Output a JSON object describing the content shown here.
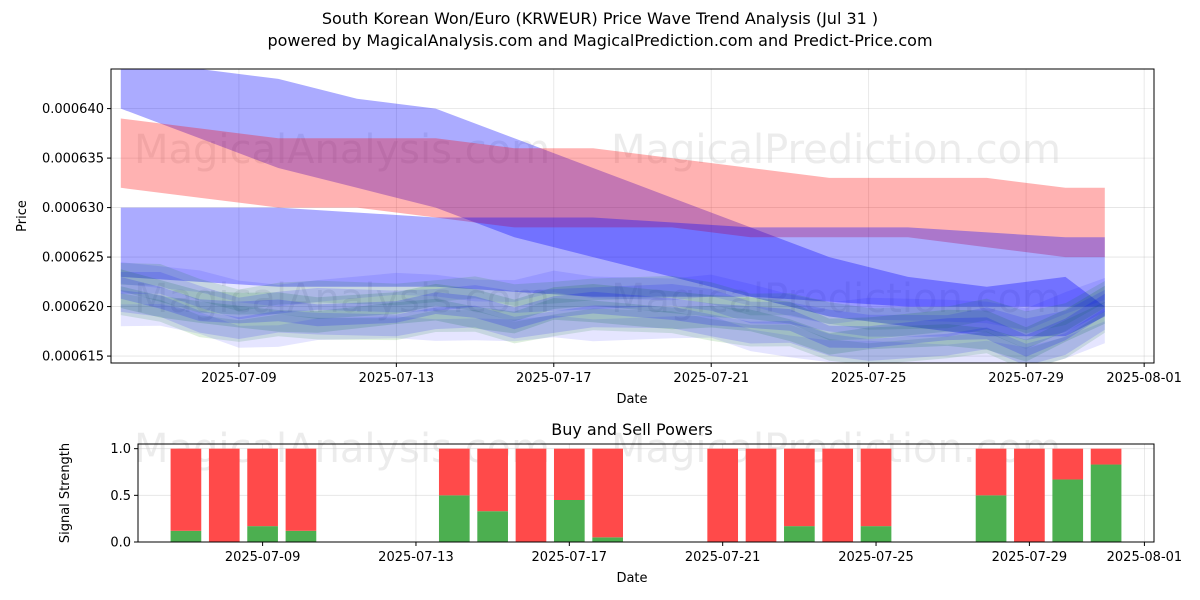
{
  "header": {
    "title": "South Korean Won/Euro (KRWEUR) Price Wave Trend Analysis (Jul 31 )",
    "subtitle": "powered by MagicalAnalysis.com and MagicalPrediction.com and Predict-Price.com"
  },
  "watermarks": [
    "MagicalAnalysis.com",
    "MagicalPrediction.com"
  ],
  "colors": {
    "blue": "#0000ff",
    "red": "#ff0000",
    "green": "#008000",
    "buy": "#4caf50",
    "sell": "#ff4a4a",
    "grid": "#b0b0b0"
  },
  "chart_data": [
    {
      "type": "area",
      "xlabel": "Date",
      "ylabel": "Price",
      "x_ticks": [
        "2025-07-09",
        "2025-07-13",
        "2025-07-17",
        "2025-07-21",
        "2025-07-25",
        "2025-07-29",
        "2025-08-01"
      ],
      "y_ticks": [
        "0.000615",
        "0.000620",
        "0.000625",
        "0.000630",
        "0.000635",
        "0.000640"
      ],
      "xlim": [
        "2025-07-05.75",
        "2025-08-01.25"
      ],
      "ylim": [
        0.0006143,
        0.000644
      ],
      "grid": true,
      "bands": [
        {
          "color": "blue",
          "opacity": 0.33,
          "x": [
            "2025-07-06",
            "2025-07-08",
            "2025-07-10",
            "2025-07-12",
            "2025-07-14",
            "2025-07-16",
            "2025-07-18",
            "2025-07-20",
            "2025-07-22",
            "2025-07-24",
            "2025-07-26",
            "2025-07-28",
            "2025-07-30",
            "2025-07-31"
          ],
          "upper": [
            0.000644,
            0.000644,
            0.000643,
            0.000641,
            0.00064,
            0.000637,
            0.000634,
            0.000631,
            0.000628,
            0.000625,
            0.000623,
            0.000622,
            0.000623,
            0.00062
          ],
          "lower": [
            0.00064,
            0.000637,
            0.000634,
            0.000632,
            0.00063,
            0.000627,
            0.000625,
            0.000623,
            0.000621,
            0.000619,
            0.000618,
            0.000617,
            0.000617,
            0.000619
          ]
        },
        {
          "color": "red",
          "opacity": 0.3,
          "x": [
            "2025-07-06",
            "2025-07-08",
            "2025-07-10",
            "2025-07-12",
            "2025-07-14",
            "2025-07-16",
            "2025-07-18",
            "2025-07-20",
            "2025-07-22",
            "2025-07-24",
            "2025-07-26",
            "2025-07-28",
            "2025-07-30",
            "2025-07-31"
          ],
          "upper": [
            0.000639,
            0.000638,
            0.000637,
            0.000637,
            0.000637,
            0.000636,
            0.000636,
            0.000635,
            0.000634,
            0.000633,
            0.000633,
            0.000633,
            0.000632,
            0.000632
          ],
          "lower": [
            0.000632,
            0.000631,
            0.00063,
            0.00063,
            0.000629,
            0.000628,
            0.000628,
            0.000628,
            0.000627,
            0.000627,
            0.000627,
            0.000626,
            0.000625,
            0.000625
          ]
        },
        {
          "color": "blue",
          "opacity": 0.33,
          "x": [
            "2025-07-06",
            "2025-07-10",
            "2025-07-14",
            "2025-07-18",
            "2025-07-22",
            "2025-07-26",
            "2025-07-30",
            "2025-07-31"
          ],
          "upper": [
            0.00063,
            0.00063,
            0.000629,
            0.000629,
            0.000628,
            0.000628,
            0.000627,
            0.000627
          ],
          "lower": [
            0.000623,
            0.000622,
            0.000622,
            0.000621,
            0.000621,
            0.00062,
            0.00062,
            0.00062
          ]
        }
      ],
      "wave_lines": {
        "x": [
          "2025-07-06",
          "2025-07-07",
          "2025-07-08",
          "2025-07-09",
          "2025-07-10",
          "2025-07-11",
          "2025-07-13",
          "2025-07-14",
          "2025-07-15",
          "2025-07-16",
          "2025-07-17",
          "2025-07-18",
          "2025-07-20",
          "2025-07-21",
          "2025-07-22",
          "2025-07-23",
          "2025-07-24",
          "2025-07-25",
          "2025-07-27",
          "2025-07-28",
          "2025-07-29",
          "2025-07-30",
          "2025-07-31"
        ],
        "center": [
          0.0006215,
          0.000621,
          0.00062,
          0.0006192,
          0.0006193,
          0.0006194,
          0.0006197,
          0.00062,
          0.0006198,
          0.0006192,
          0.00062,
          0.00062,
          0.0006198,
          0.0006196,
          0.0006188,
          0.0006183,
          0.0006172,
          0.0006172,
          0.0006174,
          0.0006176,
          0.0006164,
          0.0006178,
          0.0006198
        ]
      }
    },
    {
      "type": "bar",
      "title": "Buy and Sell Powers",
      "xlabel": "Date",
      "ylabel": "Signal Strength",
      "x_ticks": [
        "2025-07-09",
        "2025-07-13",
        "2025-07-17",
        "2025-07-21",
        "2025-07-25",
        "2025-07-29",
        "2025-08-01"
      ],
      "y_ticks": [
        "0.0",
        "0.5",
        "1.0"
      ],
      "ylim": [
        0,
        1.05
      ],
      "grid": true,
      "categories": [
        "2025-07-07",
        "2025-07-08",
        "2025-07-09",
        "2025-07-10",
        "2025-07-14",
        "2025-07-15",
        "2025-07-16",
        "2025-07-17",
        "2025-07-18",
        "2025-07-21",
        "2025-07-22",
        "2025-07-23",
        "2025-07-24",
        "2025-07-25",
        "2025-07-28",
        "2025-07-29",
        "2025-07-30",
        "2025-07-31"
      ],
      "series": [
        {
          "values": [
            0.12,
            0.0,
            0.17,
            0.12,
            0.5,
            0.33,
            0.0,
            0.45,
            0.05,
            0.0,
            0.0,
            0.17,
            0.0,
            0.17,
            0.5,
            0.0,
            0.67,
            0.83
          ]
        },
        {
          "values": [
            0.88,
            1.0,
            0.83,
            0.88,
            0.5,
            0.67,
            1.0,
            0.55,
            0.95,
            1.0,
            1.0,
            0.83,
            1.0,
            0.83,
            0.5,
            1.0,
            0.33,
            0.17
          ]
        }
      ]
    }
  ]
}
